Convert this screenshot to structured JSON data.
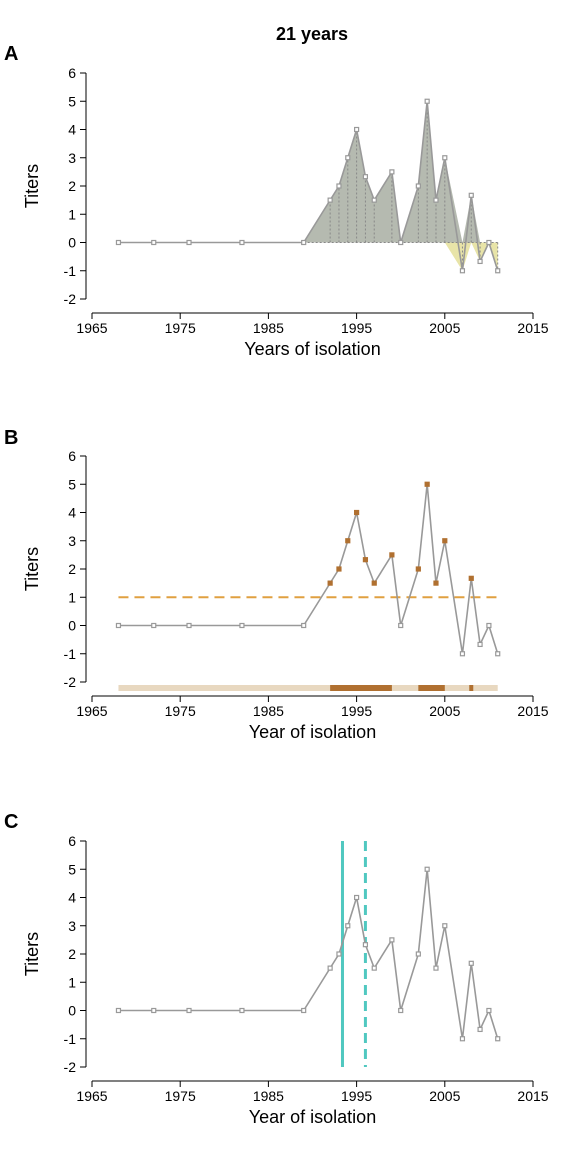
{
  "figure_title": "21 years",
  "colors": {
    "series_line": "#999999",
    "marker": "#999999",
    "area_positive": "#b5bab0",
    "area_negative": "#e8e4a8",
    "highlight_marker": "#b07030",
    "threshold_line": "#e0a040",
    "band_base": "#e8d8c0",
    "band_highlight": "#b07030",
    "vline": "#50c8c0"
  },
  "chart_data": [
    {
      "panel": "A",
      "type": "area",
      "xlabel": "Years of isolation",
      "ylabel": "Titers",
      "xlim": [
        1965,
        2015
      ],
      "ylim": [
        -2,
        6
      ],
      "x_ticks": [
        "1965",
        "1975",
        "1985",
        "1995",
        "2005",
        "2015"
      ],
      "y_ticks": [
        "-2",
        "-1",
        "0",
        "1",
        "2",
        "3",
        "4",
        "5",
        "6"
      ],
      "x": [
        1968,
        1972,
        1976,
        1982,
        1989,
        1992,
        1993,
        1994,
        1995,
        1996,
        1997,
        1999,
        2000,
        2002,
        2003,
        2004,
        2005,
        2007,
        2008,
        2009,
        2010,
        2011
      ],
      "y": [
        0,
        0,
        0,
        0,
        0,
        1.5,
        2,
        3,
        4,
        2.33,
        1.5,
        2.5,
        0,
        2,
        5,
        1.5,
        3,
        -1,
        1.67,
        -0.67,
        0,
        -1
      ]
    },
    {
      "panel": "B",
      "type": "line",
      "xlabel": "Year of isolation",
      "ylabel": "Titers",
      "xlim": [
        1965,
        2015
      ],
      "ylim": [
        -2,
        6
      ],
      "x_ticks": [
        "1965",
        "1975",
        "1985",
        "1995",
        "2005",
        "2015"
      ],
      "y_ticks": [
        "-2",
        "-1",
        "0",
        "1",
        "2",
        "3",
        "4",
        "5",
        "6"
      ],
      "x": [
        1968,
        1972,
        1976,
        1982,
        1989,
        1992,
        1993,
        1994,
        1995,
        1996,
        1997,
        1999,
        2000,
        2002,
        2003,
        2004,
        2005,
        2007,
        2008,
        2009,
        2010,
        2011
      ],
      "y": [
        0,
        0,
        0,
        0,
        0,
        1.5,
        2,
        3,
        4,
        2.33,
        1.5,
        2.5,
        0,
        2,
        5,
        1.5,
        3,
        -1,
        1.67,
        -0.67,
        0,
        -1
      ],
      "threshold": 1,
      "band_range": [
        1968,
        2011
      ],
      "highlight_intervals": [
        [
          1992,
          1999
        ],
        [
          2002,
          2005
        ],
        [
          2008,
          2008
        ]
      ]
    },
    {
      "panel": "C",
      "type": "line",
      "xlabel": "Year of isolation",
      "ylabel": "Titers",
      "xlim": [
        1965,
        2015
      ],
      "ylim": [
        -2,
        6
      ],
      "x_ticks": [
        "1965",
        "1975",
        "1985",
        "1995",
        "2005",
        "2015"
      ],
      "y_ticks": [
        "-2",
        "-1",
        "0",
        "1",
        "2",
        "3",
        "4",
        "5",
        "6"
      ],
      "x": [
        1968,
        1972,
        1976,
        1982,
        1989,
        1992,
        1993,
        1994,
        1995,
        1996,
        1997,
        1999,
        2000,
        2002,
        2003,
        2004,
        2005,
        2007,
        2008,
        2009,
        2010,
        2011
      ],
      "y": [
        0,
        0,
        0,
        0,
        0,
        1.5,
        2,
        3,
        4,
        2.33,
        1.5,
        2.5,
        0,
        2,
        5,
        1.5,
        3,
        -1,
        1.67,
        -0.67,
        0,
        -1
      ],
      "vline_solid": 1993.4,
      "vline_dashed": 1996
    }
  ]
}
